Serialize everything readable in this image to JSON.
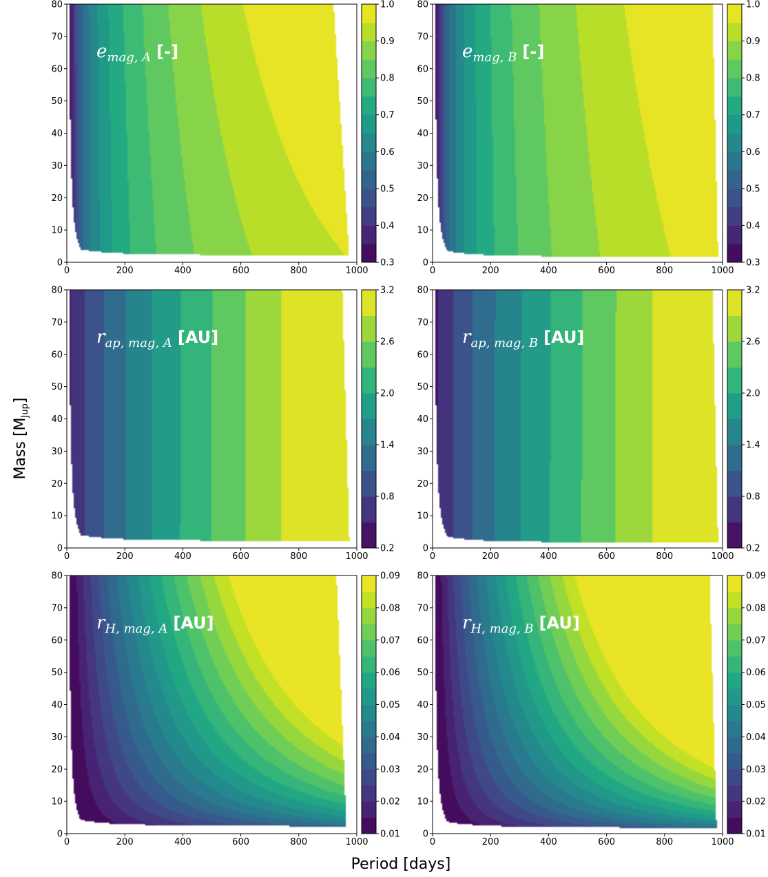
{
  "figure": {
    "xlabel": "Period [days]",
    "ylabel": "Mass [M",
    "ylabel_sub": "Jup",
    "ylabel_end": "]"
  },
  "colors": {
    "viridis": [
      "#440154",
      "#482475",
      "#414487",
      "#355f8d",
      "#2a788e",
      "#21918c",
      "#22a884",
      "#44bf70",
      "#7ad151",
      "#bddf26",
      "#fde725"
    ]
  },
  "chart_data": [
    {
      "type": "heatmap",
      "name": "e_mag_A",
      "label_sym": "e",
      "label_sub": "mag, A",
      "label_unit": "[-]",
      "xlim": [
        0,
        1000
      ],
      "ylim": [
        0,
        80
      ],
      "xticks": [
        "0",
        "200",
        "400",
        "600",
        "800",
        "1000"
      ],
      "yticks": [
        "0",
        "10",
        "20",
        "30",
        "40",
        "50",
        "60",
        "70",
        "80"
      ],
      "colorbar": {
        "min": 0.3,
        "max": 1.0,
        "levels": 14,
        "ticks": [
          "0.3",
          "0.4",
          "0.5",
          "0.6",
          "0.7",
          "0.8",
          "0.9",
          "1.0"
        ]
      },
      "field": {
        "mode": "log",
        "p0": 12,
        "vmin": 0.3,
        "vmax": 1.0,
        "slope": 0.0012
      },
      "boundary": {
        "mmin": 2.0,
        "pmax_top": 920,
        "pmax_bottom": 975,
        "ptop_min": 10
      }
    },
    {
      "type": "heatmap",
      "name": "e_mag_B",
      "label_sym": "e",
      "label_sub": "mag, B",
      "label_unit": "[-]",
      "xlim": [
        0,
        1000
      ],
      "ylim": [
        0,
        80
      ],
      "xticks": [
        "0",
        "200",
        "400",
        "600",
        "800",
        "1000"
      ],
      "yticks": [
        "0",
        "10",
        "20",
        "30",
        "40",
        "50",
        "60",
        "70",
        "80"
      ],
      "colorbar": {
        "min": 0.3,
        "max": 1.0,
        "levels": 14,
        "ticks": [
          "0.3",
          "0.4",
          "0.5",
          "0.6",
          "0.7",
          "0.8",
          "0.9",
          "1.0"
        ]
      },
      "field": {
        "mode": "log",
        "p0": 12,
        "vmin": 0.3,
        "vmax": 1.0,
        "slope": 0.0006
      },
      "boundary": {
        "mmin": 1.5,
        "pmax_top": 965,
        "pmax_bottom": 985,
        "ptop_min": 10
      }
    },
    {
      "type": "heatmap",
      "name": "r_ap_mag_A",
      "label_sym": "r",
      "label_sub": "ap, mag, A",
      "label_unit": "[AU]",
      "xlim": [
        0,
        1000
      ],
      "ylim": [
        0,
        80
      ],
      "xticks": [
        "0",
        "200",
        "400",
        "600",
        "800",
        "1000"
      ],
      "yticks": [
        "0",
        "10",
        "20",
        "30",
        "40",
        "50",
        "60",
        "70",
        "80"
      ],
      "colorbar": {
        "min": 0.2,
        "max": 3.2,
        "levels": 10,
        "ticks": [
          "0.2",
          "0.8",
          "1.4",
          "2.0",
          "2.6",
          "3.2"
        ]
      },
      "field": {
        "mode": "rap",
        "vmin": 0.2,
        "vmax": 3.2,
        "shift": 0.1
      },
      "boundary": {
        "mmin": 2.0,
        "pmax_top": 950,
        "pmax_bottom": 975,
        "ptop_min": 10
      }
    },
    {
      "type": "heatmap",
      "name": "r_ap_mag_B",
      "label_sym": "r",
      "label_sub": "ap, mag, B",
      "label_unit": "[AU]",
      "xlim": [
        0,
        1000
      ],
      "ylim": [
        0,
        80
      ],
      "xticks": [
        "0",
        "200",
        "400",
        "600",
        "800",
        "1000"
      ],
      "yticks": [
        "0",
        "10",
        "20",
        "30",
        "40",
        "50",
        "60",
        "70",
        "80"
      ],
      "colorbar": {
        "min": 0.2,
        "max": 3.2,
        "levels": 10,
        "ticks": [
          "0.2",
          "0.8",
          "1.4",
          "2.0",
          "2.6",
          "3.2"
        ]
      },
      "field": {
        "mode": "rap",
        "vmin": 0.2,
        "vmax": 3.2,
        "shift": 0.06
      },
      "boundary": {
        "mmin": 1.5,
        "pmax_top": 965,
        "pmax_bottom": 985,
        "ptop_min": 10
      }
    },
    {
      "type": "heatmap",
      "name": "r_H_mag_A",
      "label_sym": "r",
      "label_sub": "H, mag, A",
      "label_unit": "[AU]",
      "xlim": [
        0,
        1000
      ],
      "ylim": [
        0,
        80
      ],
      "xticks": [
        "0",
        "200",
        "400",
        "600",
        "800",
        "1000"
      ],
      "yticks": [
        "0",
        "10",
        "20",
        "30",
        "40",
        "50",
        "60",
        "70",
        "80"
      ],
      "colorbar": {
        "min": 0.01,
        "max": 0.09,
        "levels": 16,
        "ticks": [
          "0.01",
          "0.02",
          "0.03",
          "0.04",
          "0.05",
          "0.06",
          "0.07",
          "0.08",
          "0.09"
        ]
      },
      "field": {
        "mode": "rh",
        "vmin": 0.01,
        "vmax": 0.09,
        "k": 0.0057
      },
      "boundary": {
        "mmin": 2.2,
        "pmax_top": 930,
        "pmax_bottom": 965,
        "ptop_min": 10
      }
    },
    {
      "type": "heatmap",
      "name": "r_H_mag_B",
      "label_sym": "r",
      "label_sub": "H, mag, B",
      "label_unit": "[AU]",
      "xlim": [
        0,
        1000
      ],
      "ylim": [
        0,
        80
      ],
      "xticks": [
        "0",
        "200",
        "400",
        "600",
        "800",
        "1000"
      ],
      "yticks": [
        "0",
        "10",
        "20",
        "30",
        "40",
        "50",
        "60",
        "70",
        "80"
      ],
      "colorbar": {
        "min": 0.01,
        "max": 0.09,
        "levels": 16,
        "ticks": [
          "0.01",
          "0.02",
          "0.03",
          "0.04",
          "0.05",
          "0.06",
          "0.07",
          "0.08",
          "0.09"
        ]
      },
      "field": {
        "mode": "rh",
        "vmin": 0.01,
        "vmax": 0.09,
        "k": 0.0062
      },
      "boundary": {
        "mmin": 1.7,
        "pmax_top": 955,
        "pmax_bottom": 980,
        "ptop_min": 10
      }
    }
  ]
}
